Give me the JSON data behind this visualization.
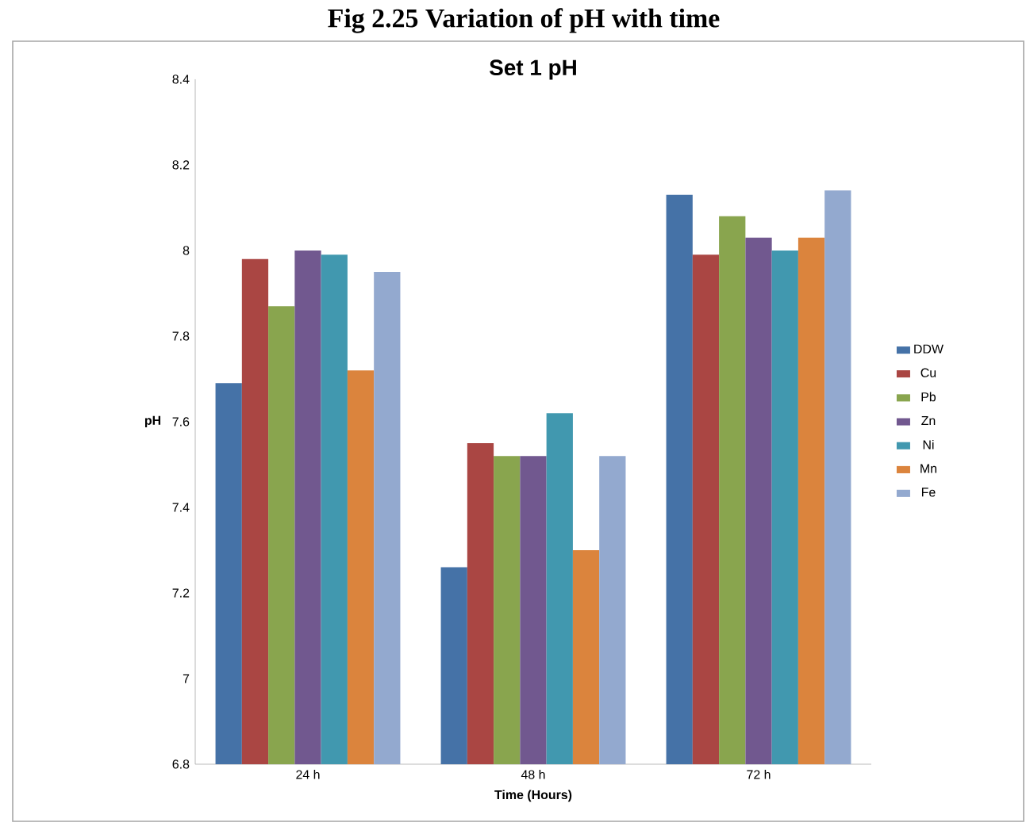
{
  "chart_data": {
    "type": "bar",
    "title": "Set 1 pH",
    "subtitle": "Fig 2.25 Variation of pH with time",
    "xlabel": "Time (Hours)",
    "ylabel": "pH",
    "categories": [
      "24 h",
      "48 h",
      "72 h"
    ],
    "series": [
      {
        "name": "DDW",
        "color": "#4572a7",
        "values": [
          7.69,
          7.26,
          8.13
        ]
      },
      {
        "name": "Cu",
        "color": "#aa4643",
        "values": [
          7.98,
          7.55,
          7.99
        ]
      },
      {
        "name": "Pb",
        "color": "#89a54e",
        "values": [
          7.87,
          7.52,
          8.08
        ]
      },
      {
        "name": "Zn",
        "color": "#71588f",
        "values": [
          8.0,
          7.52,
          8.03
        ]
      },
      {
        "name": "Ni",
        "color": "#4198af",
        "values": [
          7.99,
          7.62,
          8.0
        ]
      },
      {
        "name": "Mn",
        "color": "#db843d",
        "values": [
          7.72,
          7.3,
          8.03
        ]
      },
      {
        "name": "Fe",
        "color": "#93a9cf",
        "values": [
          7.95,
          7.52,
          8.14
        ]
      }
    ],
    "ylim": [
      6.8,
      8.4
    ],
    "yticks": [
      6.8,
      7,
      7.2,
      7.4,
      7.6,
      7.8,
      8,
      8.2,
      8.4
    ],
    "grid": false,
    "legend": "right"
  }
}
